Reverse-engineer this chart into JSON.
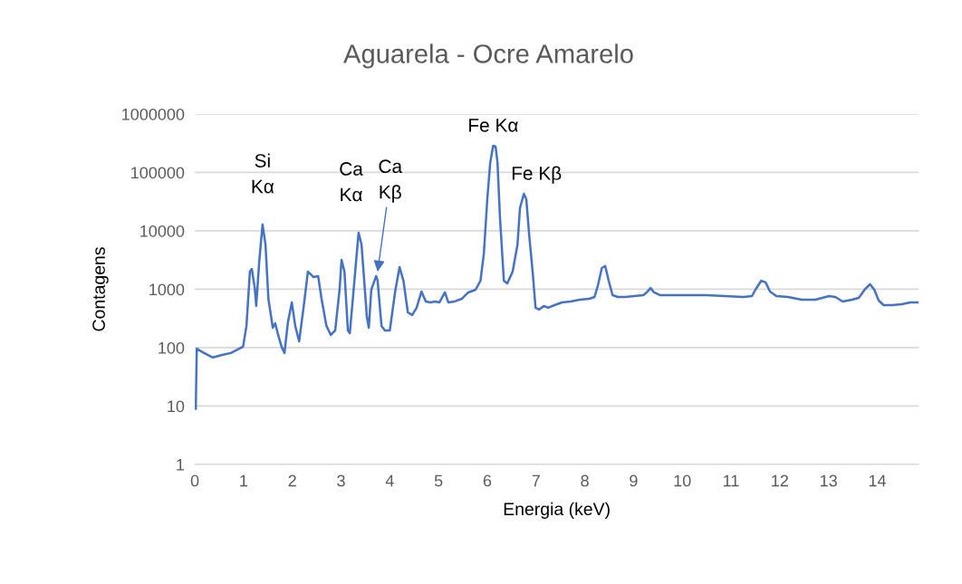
{
  "chart_data": {
    "type": "line",
    "title": "Aguarela - Ocre Amarelo",
    "xlabel": "Energia (keV)",
    "ylabel": "Contagens",
    "log": "y",
    "grid": "y",
    "marker": "none",
    "line_style": "solid",
    "xlim": [
      0,
      14.85
    ],
    "xticks": [
      0,
      1,
      2,
      3,
      4,
      5,
      6,
      7,
      8,
      9,
      10,
      11,
      12,
      13,
      14
    ],
    "ylim": [
      1,
      1000000
    ],
    "yticks": [
      1,
      10,
      100,
      1000,
      10000,
      100000,
      1000000
    ],
    "annotations": [
      {
        "text": "Si\nKα",
        "x": 1.39,
        "y": 12800
      },
      {
        "text": "Ca\nKα",
        "x": 3.36,
        "y": 9310
      },
      {
        "text": "Ca\nKβ",
        "x": 3.75,
        "y": 2000
      },
      {
        "text": "Fe Kα",
        "x": 6.12,
        "y": 287000
      },
      {
        "text": "Fe Kβ",
        "x": 6.75,
        "y": 43200
      }
    ],
    "series": [
      {
        "color": "#4472c4",
        "x": [
          0.02,
          0.04,
          0.19,
          0.37,
          0.56,
          0.74,
          0.99,
          1.06,
          1.13,
          1.17,
          1.23,
          1.26,
          1.32,
          1.39,
          1.45,
          1.51,
          1.6,
          1.65,
          1.71,
          1.78,
          1.84,
          1.91,
          1.99,
          2.06,
          2.14,
          2.23,
          2.32,
          2.38,
          2.43,
          2.53,
          2.6,
          2.7,
          2.79,
          2.88,
          2.97,
          3.01,
          3.07,
          3.14,
          3.18,
          3.25,
          3.36,
          3.42,
          3.53,
          3.57,
          3.62,
          3.72,
          3.75,
          3.83,
          3.9,
          4.0,
          4.11,
          4.2,
          4.28,
          4.37,
          4.46,
          4.55,
          4.65,
          4.74,
          4.83,
          4.93,
          5.02,
          5.13,
          5.2,
          5.33,
          5.48,
          5.61,
          5.76,
          5.86,
          5.93,
          6.0,
          6.06,
          6.12,
          6.17,
          6.21,
          6.26,
          6.34,
          6.41,
          6.52,
          6.62,
          6.67,
          6.75,
          6.8,
          6.86,
          6.93,
          6.99,
          7.06,
          7.16,
          7.25,
          7.38,
          7.53,
          7.71,
          7.9,
          8.09,
          8.2,
          8.27,
          8.35,
          8.42,
          8.49,
          8.57,
          8.68,
          8.83,
          9.01,
          9.2,
          9.27,
          9.35,
          9.42,
          9.54,
          9.76,
          10.13,
          10.5,
          10.87,
          11.25,
          11.43,
          11.5,
          11.62,
          11.71,
          11.8,
          11.93,
          12.17,
          12.45,
          12.73,
          13.01,
          13.14,
          13.29,
          13.48,
          13.62,
          13.74,
          13.85,
          13.94,
          14.03,
          14.13,
          14.31,
          14.5,
          14.68,
          14.83
        ],
        "values": [
          9,
          96,
          81,
          68,
          75,
          81,
          104,
          236,
          2000,
          2230,
          1050,
          517,
          2870,
          12800,
          5850,
          687,
          219,
          262,
          165,
          104,
          81,
          272,
          596,
          236,
          128,
          481,
          2000,
          1800,
          1620,
          1680,
          687,
          236,
          165,
          197,
          982,
          3190,
          2000,
          197,
          177,
          822,
          9310,
          5850,
          337,
          219,
          982,
          1680,
          1400,
          236,
          197,
          197,
          915,
          2400,
          1400,
          402,
          362,
          481,
          915,
          618,
          596,
          618,
          596,
          883,
          596,
          618,
          687,
          883,
          982,
          1400,
          4100,
          34900,
          146000,
          287000,
          277000,
          146000,
          17100,
          1400,
          1260,
          2000,
          5850,
          24400,
          43200,
          34900,
          8360,
          2000,
          481,
          448,
          517,
          481,
          535,
          596,
          618,
          663,
          687,
          738,
          1170,
          2310,
          2490,
          1400,
          793,
          738,
          738,
          765,
          793,
          883,
          1050,
          883,
          793,
          793,
          793,
          793,
          765,
          738,
          765,
          982,
          1400,
          1310,
          915,
          765,
          738,
          663,
          663,
          765,
          738,
          618,
          663,
          713,
          982,
          1220,
          982,
          640,
          535,
          535,
          555,
          596,
          596
        ]
      }
    ]
  }
}
